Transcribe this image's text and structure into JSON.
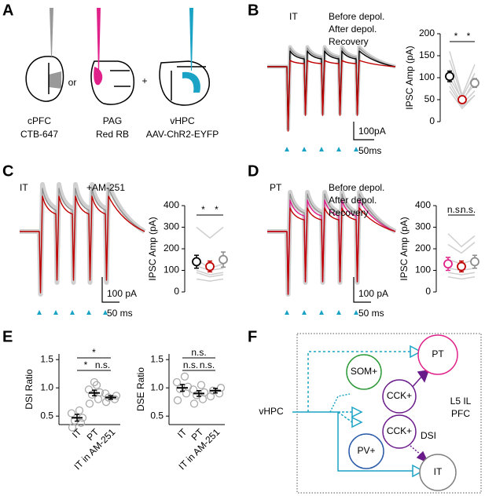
{
  "panel_labels": [
    "A",
    "B",
    "C",
    "D",
    "E",
    "F"
  ],
  "panel_a": {
    "regions": [
      {
        "name": "cPFC",
        "tracer": "CTB-647",
        "color": "#808080"
      },
      {
        "name": "PAG",
        "tracer": "Red RB",
        "color": "#e0218a"
      },
      {
        "name": "vHPC",
        "tracer": "AAV-ChR2-EYFP",
        "color": "#1ba3c6"
      }
    ],
    "or": "or",
    "plus": "+"
  },
  "panel_b": {
    "cell": "IT",
    "legend": [
      {
        "name": "Before depol.",
        "color": "#000000"
      },
      {
        "name": "After depol.",
        "color": "#c00000"
      },
      {
        "name": "Recovery",
        "color": "#8c8c8c"
      }
    ],
    "scale_y": "100pA",
    "scale_x": "50ms"
  },
  "panel_c": {
    "cell": "IT",
    "condition": "+AM-251",
    "scale_y": "100 pA",
    "scale_x": "50 ms"
  },
  "panel_d": {
    "cell": "PT",
    "cell_color": "#e0218a",
    "legend": [
      {
        "name": "Before depol.",
        "color": "#e0218a"
      },
      {
        "name": "After depol.",
        "color": "#c00000"
      },
      {
        "name": "Recovery",
        "color": "#8c8c8c"
      }
    ],
    "scale_y": "100 pA",
    "scale_x": "50 ms"
  },
  "panel_f": {
    "input": "vHPC",
    "area": [
      "L5 IL",
      "PFC"
    ],
    "dsi": "DSI",
    "cells": [
      {
        "name": "PT",
        "color": "#e0218a"
      },
      {
        "name": "SOM+",
        "color": "#2e9a3a"
      },
      {
        "name": "CCK+",
        "color": "#6a1b8a"
      },
      {
        "name": "CCK+",
        "color": "#6a1b8a"
      },
      {
        "name": "PV+",
        "color": "#2a5aa8"
      },
      {
        "name": "IT",
        "color": "#808080"
      }
    ]
  },
  "chart_data": [
    {
      "type": "errorbar",
      "ylabel": "IPSC Amp (pA)",
      "ylim": [
        0,
        200
      ],
      "yticks": [
        0,
        50,
        100,
        150,
        200
      ],
      "categories": [
        null,
        null,
        null
      ],
      "values": [
        103,
        50,
        88
      ],
      "errors": [
        12,
        8,
        10
      ],
      "colors": [
        "#000000",
        "#c00000",
        "#8c8c8c"
      ],
      "individual": [
        [
          160,
          60,
          130
        ],
        [
          140,
          55,
          110
        ],
        [
          120,
          45,
          95
        ],
        [
          100,
          50,
          85
        ],
        [
          90,
          40,
          70
        ],
        [
          80,
          35,
          60
        ],
        [
          70,
          30,
          60
        ]
      ],
      "significance": [
        {
          "label": "*",
          "pair": [
            0,
            1
          ]
        },
        {
          "label": "*",
          "pair": [
            1,
            2
          ]
        }
      ]
    },
    {
      "type": "errorbar",
      "ylabel": "IPSC Amp (pA)",
      "ylim": [
        0,
        400
      ],
      "yticks": [
        0,
        100,
        200,
        300,
        400
      ],
      "categories": [
        null,
        null,
        null
      ],
      "values": [
        140,
        118,
        150
      ],
      "errors": [
        30,
        25,
        35
      ],
      "colors": [
        "#000000",
        "#c00000",
        "#8c8c8c"
      ],
      "individual": [
        [
          300,
          250,
          300
        ],
        [
          150,
          110,
          130
        ],
        [
          120,
          100,
          110
        ],
        [
          100,
          80,
          90
        ],
        [
          90,
          70,
          80
        ],
        [
          60,
          50,
          60
        ]
      ],
      "significance": [
        {
          "label": "*",
          "pair": [
            0,
            1
          ]
        },
        {
          "label": "*",
          "pair": [
            1,
            2
          ]
        }
      ]
    },
    {
      "type": "errorbar",
      "ylabel": "IPSC Amp (pA)",
      "ylim": [
        0,
        400
      ],
      "yticks": [
        0,
        100,
        200,
        300,
        400
      ],
      "categories": [
        null,
        null,
        null
      ],
      "values": [
        130,
        118,
        140
      ],
      "errors": [
        30,
        25,
        30
      ],
      "colors": [
        "#e0218a",
        "#c00000",
        "#8c8c8c"
      ],
      "individual": [
        [
          270,
          210,
          260
        ],
        [
          220,
          180,
          230
        ],
        [
          150,
          130,
          150
        ],
        [
          110,
          100,
          110
        ],
        [
          90,
          80,
          90
        ],
        [
          70,
          60,
          70
        ]
      ],
      "significance": [
        {
          "label": "n.s.",
          "pair": [
            0,
            1
          ]
        },
        {
          "label": "n.s.",
          "pair": [
            1,
            2
          ]
        }
      ]
    },
    {
      "type": "errorbar",
      "ylabel": "DSI Ratio",
      "ylim": [
        0.35,
        1.6
      ],
      "yticks": [
        0.5,
        {
          "value": 1,
          "label": "1.0"
        },
        1.5
      ],
      "categories": [
        "IT",
        "PT",
        "IT in AM-251"
      ],
      "values": [
        0.47,
        0.91,
        0.83
      ],
      "errors": [
        0.06,
        0.05,
        0.03
      ],
      "colors": [
        "#000000",
        "#000000",
        "#000000"
      ],
      "points": [
        [
          0.3,
          0.38,
          0.42,
          0.47,
          0.55,
          0.6
        ],
        [
          0.72,
          0.8,
          0.88,
          0.92,
          0.97,
          1.05,
          1.1
        ],
        [
          0.75,
          0.8,
          0.83,
          0.86,
          0.9
        ]
      ],
      "significance": [
        {
          "label": "*",
          "pair": [
            0,
            2
          ]
        },
        {
          "label": "*",
          "pair": [
            0,
            1
          ]
        },
        {
          "label": "n.s.",
          "pair": [
            1,
            2
          ]
        }
      ]
    },
    {
      "type": "errorbar",
      "ylabel": "DSE Ratio",
      "ylim": [
        0.35,
        1.6
      ],
      "yticks": [
        0.5,
        {
          "value": 1,
          "label": "1.0"
        },
        1.5
      ],
      "categories": [
        "IT",
        "PT",
        "IT in AM-251"
      ],
      "values": [
        1.0,
        0.9,
        0.95
      ],
      "errors": [
        0.06,
        0.05,
        0.04
      ],
      "colors": [
        "#000000",
        "#000000",
        "#000000"
      ],
      "points": [
        [
          0.78,
          0.9,
          0.98,
          1.02,
          1.1,
          1.2
        ],
        [
          0.72,
          0.8,
          0.87,
          0.92,
          0.97,
          1.05
        ],
        [
          0.85,
          0.9,
          0.95,
          1.0
        ]
      ],
      "significance": [
        {
          "label": "n.s.",
          "pair": [
            0,
            2
          ]
        },
        {
          "label": "n.s.",
          "pair": [
            0,
            1
          ]
        },
        {
          "label": "n.s.",
          "pair": [
            1,
            2
          ]
        }
      ]
    }
  ]
}
